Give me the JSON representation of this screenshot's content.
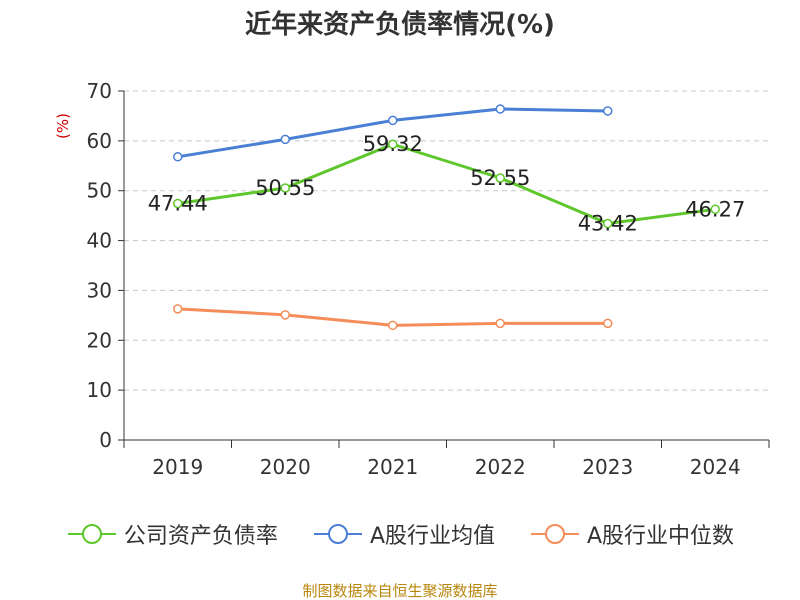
{
  "chart_data": {
    "type": "line",
    "title": "近年来资产负债率情况(%)",
    "ylabel": "(%)",
    "xlabel": "",
    "categories": [
      "2019",
      "2020",
      "2021",
      "2022",
      "2023",
      "2024"
    ],
    "ylim": [
      0,
      70
    ],
    "yticks": [
      "0",
      "10",
      "20",
      "30",
      "40",
      "50",
      "60",
      "70"
    ],
    "grid": true,
    "legend_position": "bottom",
    "series": [
      {
        "name": "公司资产负债率",
        "color": "#5ec72c",
        "values": [
          47.44,
          50.55,
          59.32,
          52.55,
          43.42,
          46.27
        ],
        "labels": [
          "47.44",
          "50.55",
          "59.32",
          "52.55",
          "43.42",
          "46.27"
        ]
      },
      {
        "name": "A股行业均值",
        "color": "#4a7fd6",
        "values": [
          56.8,
          60.3,
          64.1,
          66.4,
          66.0,
          null
        ]
      },
      {
        "name": "A股行业中位数",
        "color": "#f58d5a",
        "values": [
          26.3,
          25.1,
          23.0,
          23.4,
          23.4,
          null
        ]
      }
    ]
  },
  "source": "制图数据来自恒生聚源数据库"
}
